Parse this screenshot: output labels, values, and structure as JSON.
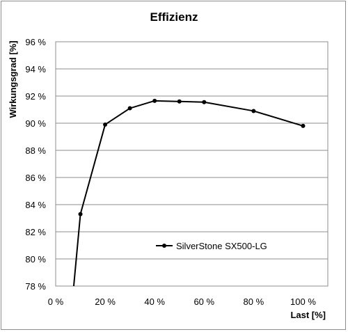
{
  "chart_data": {
    "type": "line",
    "title": "Effizienz",
    "xlabel": "Last [%]",
    "ylabel": "Wirkungsgrad [%]",
    "xlim": [
      0,
      110
    ],
    "ylim": [
      78,
      96
    ],
    "x_ticks": [
      0,
      20,
      40,
      60,
      80,
      100
    ],
    "x_tick_labels": [
      "0 %",
      "20 %",
      "40 %",
      "60 %",
      "80 %",
      "100 %"
    ],
    "y_ticks": [
      78,
      80,
      82,
      84,
      86,
      88,
      90,
      92,
      94,
      96
    ],
    "y_tick_labels": [
      "78 %",
      "80 %",
      "82 %",
      "84 %",
      "86 %",
      "88 %",
      "90 %",
      "92 %",
      "94 %",
      "96 %"
    ],
    "grid": "horizontal",
    "legend_position": "inside-center",
    "series": [
      {
        "name": "SilverStone SX500-LG",
        "color": "#000000",
        "x": [
          10,
          20,
          30,
          40,
          50,
          60,
          80,
          100
        ],
        "y": [
          83.3,
          89.9,
          91.1,
          91.65,
          91.6,
          91.55,
          90.9,
          89.8
        ],
        "line_extends_to": {
          "x": 7.3,
          "y": 78
        }
      }
    ]
  }
}
